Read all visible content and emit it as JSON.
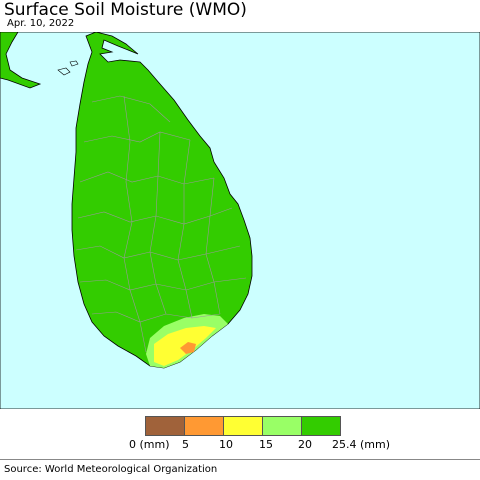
{
  "header": {
    "title": "Surface Soil Moisture (WMO)",
    "date": "Apr. 10, 2022"
  },
  "map": {
    "region": "Sri Lanka",
    "sea_color": "#ccffff",
    "land_dominant_color": "#33cc00",
    "boundary_color": "#999999"
  },
  "legend": {
    "unit_start": "0 (mm)",
    "unit_end": "25.4 (mm)",
    "ticks": [
      "5",
      "10",
      "15",
      "20"
    ],
    "colors": [
      "#a0623a",
      "#ff9933",
      "#ffff33",
      "#99ff66",
      "#33cc00"
    ]
  },
  "footer": {
    "source": "Source: World Meteorological Organization"
  }
}
